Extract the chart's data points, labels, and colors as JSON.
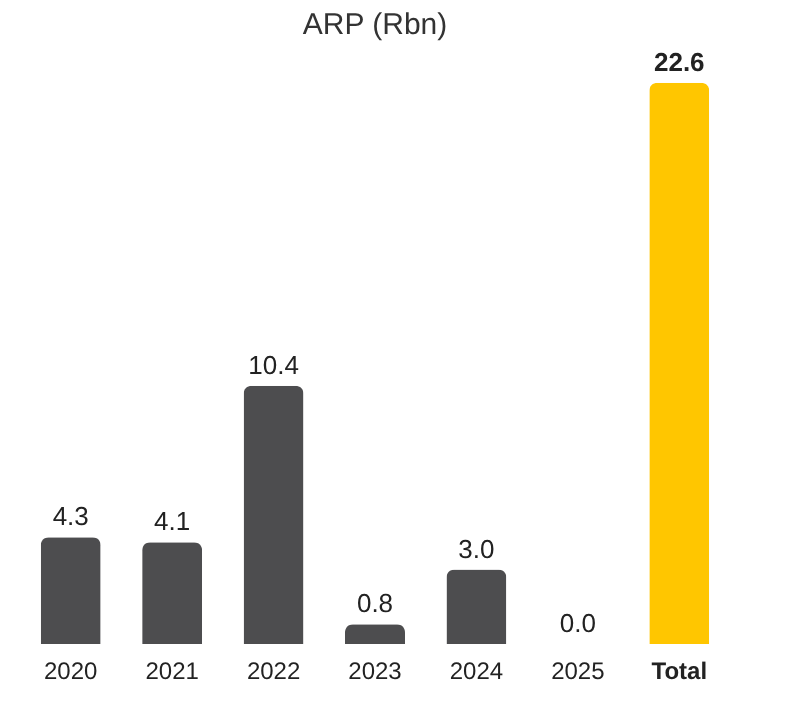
{
  "chart_data": {
    "type": "bar",
    "title": "ARP (Rbn)",
    "categories": [
      "2020",
      "2021",
      "2022",
      "2023",
      "2024",
      "2025",
      "Total"
    ],
    "values": [
      4.3,
      4.1,
      10.4,
      0.8,
      3.0,
      0.0,
      22.6
    ],
    "value_labels": [
      "4.3",
      "4.1",
      "10.4",
      "0.8",
      "3.0",
      "0.0",
      "22.6"
    ],
    "colors": [
      "#4d4d4f",
      "#4d4d4f",
      "#4d4d4f",
      "#4d4d4f",
      "#4d4d4f",
      "#4d4d4f",
      "#ffc600"
    ],
    "grid": false
  }
}
